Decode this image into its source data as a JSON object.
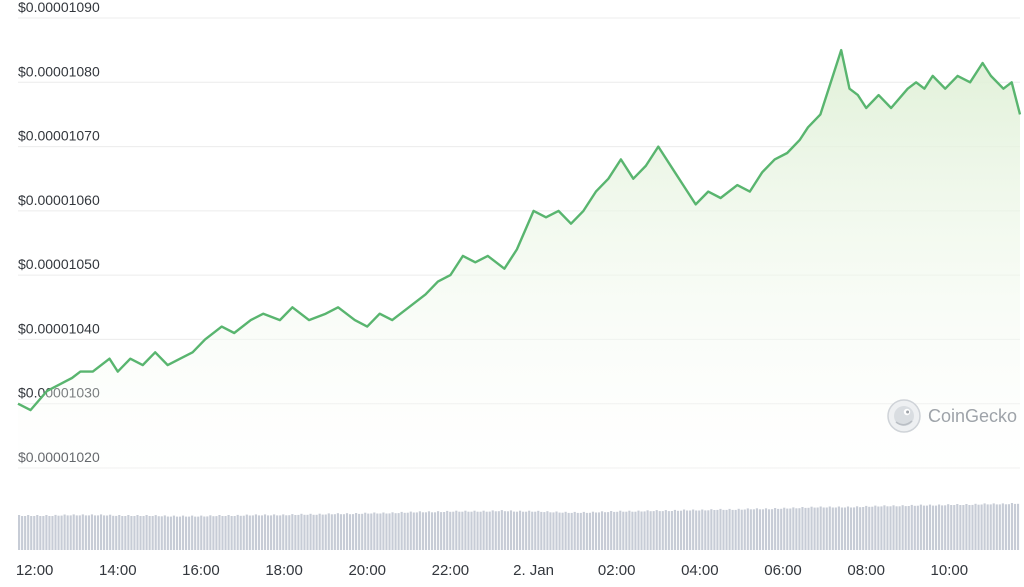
{
  "chart_data": {
    "type": "area",
    "title": "",
    "xlabel": "",
    "ylabel": "",
    "x_ticks": [
      "12:00",
      "14:00",
      "16:00",
      "18:00",
      "20:00",
      "22:00",
      "2. Jan",
      "02:00",
      "04:00",
      "06:00",
      "08:00",
      "10:00"
    ],
    "y_ticks": [
      "$0.00001020",
      "$0.00001030",
      "$0.00001040",
      "$0.00001050",
      "$0.00001060",
      "$0.00001070",
      "$0.00001080",
      "$0.00001090"
    ],
    "ylim": [
      1.02e-05,
      1.09e-05
    ],
    "xlim_hours": [
      11.6,
      35.7
    ],
    "grid": true,
    "line_color": "#59b56f",
    "fill_color": "#e3f2dc",
    "volume_color": "#c7ccd6",
    "series": [
      {
        "x": [
          11.6,
          11.9,
          12.3,
          12.6,
          12.9,
          13.1,
          13.4,
          13.8,
          14.0,
          14.3,
          14.6,
          14.9,
          15.2,
          15.5,
          15.8,
          16.1,
          16.5,
          16.8,
          17.2,
          17.5,
          17.9,
          18.2,
          18.6,
          19.0,
          19.3,
          19.7,
          20.0,
          20.3,
          20.6,
          21.0,
          21.4,
          21.7,
          22.0,
          22.3,
          22.6,
          22.9,
          23.3,
          23.6,
          24.0,
          24.3,
          24.6,
          24.9,
          25.2,
          25.5,
          25.8,
          26.1,
          26.4,
          26.7,
          27.0,
          27.4,
          27.6,
          27.9,
          28.2,
          28.5,
          28.9,
          29.2,
          29.5,
          29.8,
          30.1,
          30.4,
          30.6,
          30.9,
          31.1,
          31.4,
          31.6,
          31.8,
          32.0,
          32.3,
          32.6,
          33.0,
          33.2,
          33.4,
          33.6,
          33.9,
          34.2,
          34.5,
          34.8,
          35.0,
          35.3,
          35.5,
          35.7
        ],
        "y": [
          1.03e-05,
          1.029e-05,
          1.032e-05,
          1.033e-05,
          1.034e-05,
          1.035e-05,
          1.035e-05,
          1.037e-05,
          1.035e-05,
          1.037e-05,
          1.036e-05,
          1.038e-05,
          1.036e-05,
          1.037e-05,
          1.038e-05,
          1.04e-05,
          1.042e-05,
          1.041e-05,
          1.043e-05,
          1.044e-05,
          1.043e-05,
          1.045e-05,
          1.043e-05,
          1.044e-05,
          1.045e-05,
          1.043e-05,
          1.042e-05,
          1.044e-05,
          1.043e-05,
          1.045e-05,
          1.047e-05,
          1.049e-05,
          1.05e-05,
          1.053e-05,
          1.052e-05,
          1.053e-05,
          1.051e-05,
          1.054e-05,
          1.06e-05,
          1.059e-05,
          1.06e-05,
          1.058e-05,
          1.06e-05,
          1.063e-05,
          1.065e-05,
          1.068e-05,
          1.065e-05,
          1.067e-05,
          1.07e-05,
          1.066e-05,
          1.064e-05,
          1.061e-05,
          1.063e-05,
          1.062e-05,
          1.064e-05,
          1.063e-05,
          1.066e-05,
          1.068e-05,
          1.069e-05,
          1.071e-05,
          1.073e-05,
          1.075e-05,
          1.079e-05,
          1.085e-05,
          1.079e-05,
          1.078e-05,
          1.076e-05,
          1.078e-05,
          1.076e-05,
          1.079e-05,
          1.08e-05,
          1.079e-05,
          1.081e-05,
          1.079e-05,
          1.081e-05,
          1.08e-05,
          1.083e-05,
          1.081e-05,
          1.079e-05,
          1.08e-05,
          1.075e-05
        ]
      }
    ],
    "volume_relative": [
      0.56,
      0.56,
      0.56,
      0.57,
      0.57,
      0.57,
      0.56,
      0.56,
      0.56,
      0.55,
      0.55,
      0.55,
      0.56,
      0.56,
      0.57,
      0.57,
      0.57,
      0.58,
      0.58,
      0.59,
      0.59,
      0.6,
      0.6,
      0.61,
      0.62,
      0.62,
      0.63,
      0.63,
      0.63,
      0.64,
      0.63,
      0.63,
      0.62,
      0.61,
      0.61,
      0.62,
      0.63,
      0.63,
      0.64,
      0.64,
      0.65,
      0.65,
      0.66,
      0.66,
      0.67,
      0.67,
      0.68,
      0.69,
      0.7,
      0.7,
      0.7,
      0.71,
      0.72,
      0.72,
      0.73,
      0.73,
      0.74,
      0.74,
      0.75,
      0.75,
      0.76
    ]
  },
  "watermark": {
    "icon": "gecko-icon",
    "text": "CoinGecko"
  }
}
